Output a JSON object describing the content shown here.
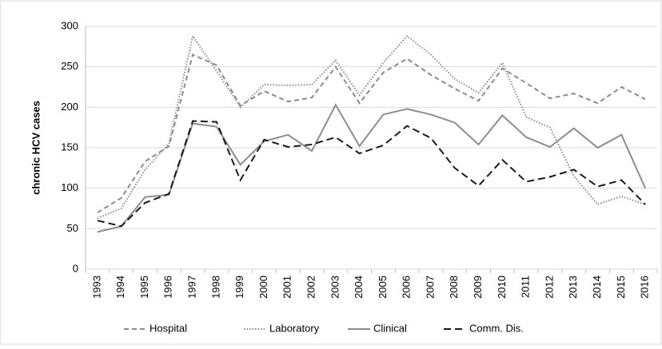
{
  "chart_data": {
    "type": "line",
    "y_label": "chronic HCV cases",
    "categories": [
      "1993",
      "1994",
      "1995",
      "1996",
      "1997",
      "1998",
      "1999",
      "2000",
      "2001",
      "2002",
      "2003",
      "2004",
      "2005",
      "2006",
      "2007",
      "2008",
      "2009",
      "2010",
      "2011",
      "2012",
      "2013",
      "2014",
      "2015",
      "2016"
    ],
    "series": [
      {
        "name": "Hospital",
        "color": "#8c8c8c",
        "dash": "6,4",
        "values": [
          70,
          88,
          133,
          152,
          265,
          252,
          202,
          220,
          207,
          212,
          250,
          205,
          243,
          260,
          240,
          223,
          208,
          248,
          230,
          211,
          217,
          205,
          225,
          210
        ]
      },
      {
        "name": "Laboratory",
        "color": "#8c8c8c",
        "dash": "1.5,2",
        "values": [
          63,
          75,
          123,
          155,
          288,
          245,
          200,
          228,
          227,
          228,
          258,
          215,
          255,
          288,
          265,
          235,
          218,
          255,
          188,
          175,
          115,
          80,
          90,
          80
        ]
      },
      {
        "name": "Clinical",
        "color": "#8c8c8c",
        "dash": "none",
        "values": [
          46,
          53,
          89,
          92,
          180,
          176,
          129,
          158,
          166,
          146,
          203,
          152,
          191,
          198,
          191,
          181,
          154,
          190,
          163,
          151,
          174,
          150,
          166,
          100
        ]
      },
      {
        "name": "Comm. Dis.",
        "color": "#1a1a1a",
        "dash": "9,5",
        "values": [
          60,
          53,
          82,
          93,
          183,
          182,
          110,
          160,
          151,
          154,
          163,
          143,
          153,
          177,
          162,
          125,
          103,
          135,
          108,
          114,
          123,
          102,
          110,
          80
        ]
      }
    ],
    "ylim": [
      0,
      300
    ],
    "yticks": [
      0,
      50,
      100,
      150,
      200,
      250,
      300
    ],
    "grid": true,
    "legend": "bottom"
  }
}
